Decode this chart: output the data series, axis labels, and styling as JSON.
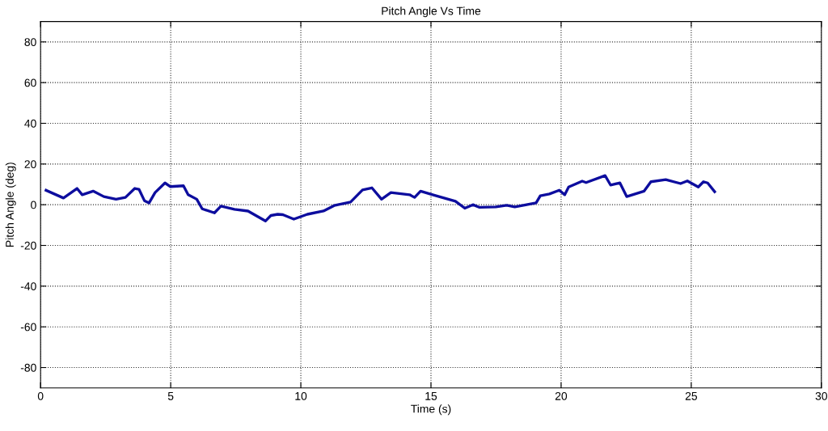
{
  "chart_data": {
    "type": "line",
    "title": "Pitch Angle Vs Time",
    "xlabel": "Time (s)",
    "ylabel": "Pitch Angle (deg)",
    "xlim": [
      0,
      30
    ],
    "xticks": [
      0,
      5,
      10,
      15,
      20,
      25,
      30
    ],
    "ylim": [
      -90,
      90
    ],
    "yticks": [
      -80,
      -60,
      -40,
      -20,
      0,
      20,
      40,
      60,
      80
    ],
    "grid": true,
    "line_style": "solid",
    "marker": "none",
    "series": [
      {
        "color": "#0d0d9e",
        "x": [
          0.21,
          0.88,
          1.4,
          1.6,
          2.02,
          2.43,
          2.9,
          3.26,
          3.62,
          3.78,
          3.99,
          4.17,
          4.4,
          4.78,
          4.99,
          5.49,
          5.67,
          6.0,
          6.21,
          6.68,
          6.93,
          7.45,
          7.97,
          8.64,
          8.85,
          9.11,
          9.31,
          9.73,
          10.25,
          10.87,
          11.28,
          11.91,
          12.37,
          12.73,
          13.1,
          13.46,
          14.18,
          14.37,
          14.6,
          15.12,
          15.94,
          16.3,
          16.61,
          16.87,
          17.49,
          17.91,
          18.22,
          19.04,
          19.2,
          19.55,
          19.93,
          20.14,
          20.29,
          20.81,
          20.96,
          21.69,
          21.9,
          22.26,
          22.52,
          23.19,
          23.45,
          24.02,
          24.59,
          24.85,
          25.27,
          25.47,
          25.63,
          25.9
        ],
        "values": [
          7.1,
          3.3,
          8,
          4.9,
          6.7,
          4,
          2.7,
          3.6,
          8,
          7.6,
          2,
          0.9,
          6,
          10.7,
          8.9,
          9.3,
          4.9,
          2.7,
          -2,
          -4,
          -0.7,
          -2.3,
          -3.1,
          -8,
          -5.3,
          -4.7,
          -4.9,
          -7.1,
          -4.7,
          -3.1,
          -0.4,
          1.3,
          7.3,
          8.3,
          2.7,
          6,
          4.9,
          3.6,
          6.7,
          4.7,
          1.7,
          -1.7,
          0,
          -1.3,
          -1.1,
          -0.3,
          -1.1,
          0.9,
          4.4,
          5.3,
          7.1,
          4.9,
          8.7,
          11.6,
          10.9,
          14.3,
          9.7,
          10.7,
          4,
          6.7,
          11.3,
          12.3,
          10.4,
          11.7,
          8.7,
          11.3,
          10.7,
          6.4
        ]
      }
    ]
  }
}
